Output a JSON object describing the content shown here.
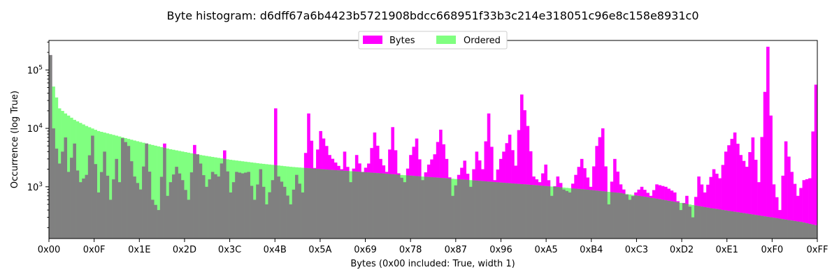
{
  "chart_data": {
    "type": "bar",
    "title": "Byte histogram: d6dff67a6b4423b5721908bdcc668951f33b3c214e318051c96e8c158e8931c0",
    "xlabel": "Bytes (0x00 included: True, width 1)",
    "ylabel": "Occurrence (log True)",
    "yscale": "log",
    "ylim": [
      130,
      320000
    ],
    "xlim": [
      0,
      255
    ],
    "x_ticks": [
      "0x00",
      "0x0F",
      "0x1E",
      "0x2D",
      "0x3C",
      "0x4B",
      "0x5A",
      "0x69",
      "0x78",
      "0x87",
      "0x96",
      "0xA5",
      "0xB4",
      "0xC3",
      "0xD2",
      "0xE1",
      "0xF0",
      "0xFF"
    ],
    "y_ticks": [
      {
        "value": 1000,
        "base": "10",
        "exp": "3"
      },
      {
        "value": 10000,
        "base": "10",
        "exp": "4"
      },
      {
        "value": 100000,
        "base": "10",
        "exp": "5"
      }
    ],
    "legend": {
      "placement": "top-center",
      "entries": [
        "Bytes",
        "Ordered"
      ]
    },
    "colors": {
      "bytes": "#ff00ff",
      "ordered": "#80ff80",
      "overlap": "#808080"
    },
    "series": [
      {
        "name": "Bytes",
        "anchors": [
          [
            0,
            180000
          ],
          [
            1,
            10000
          ],
          [
            2,
            4500
          ],
          [
            3,
            2500
          ],
          [
            4,
            4000
          ],
          [
            5,
            7000
          ],
          [
            6,
            1800
          ],
          [
            8,
            5500
          ],
          [
            9,
            1900
          ],
          [
            10,
            1200
          ],
          [
            12,
            1600
          ],
          [
            14,
            7500
          ],
          [
            16,
            800
          ],
          [
            18,
            4000
          ],
          [
            20,
            600
          ],
          [
            22,
            3000
          ],
          [
            23,
            1200
          ],
          [
            24,
            6800
          ],
          [
            26,
            5000
          ],
          [
            28,
            1500
          ],
          [
            30,
            900
          ],
          [
            32,
            5500
          ],
          [
            34,
            600
          ],
          [
            36,
            400
          ],
          [
            38,
            5500
          ],
          [
            39,
            700
          ],
          [
            40,
            1200
          ],
          [
            42,
            2200
          ],
          [
            44,
            1300
          ],
          [
            46,
            600
          ],
          [
            48,
            5200
          ],
          [
            50,
            2500
          ],
          [
            52,
            1000
          ],
          [
            54,
            1800
          ],
          [
            56,
            1500
          ],
          [
            58,
            4200
          ],
          [
            60,
            800
          ],
          [
            62,
            1800
          ],
          [
            64,
            1700
          ],
          [
            66,
            1800
          ],
          [
            68,
            600
          ],
          [
            70,
            2000
          ],
          [
            72,
            500
          ],
          [
            74,
            1300
          ],
          [
            75,
            22000
          ],
          [
            76,
            1500
          ],
          [
            78,
            1000
          ],
          [
            80,
            500
          ],
          [
            82,
            1600
          ],
          [
            84,
            800
          ],
          [
            86,
            18000
          ],
          [
            88,
            2100
          ],
          [
            90,
            9000
          ],
          [
            92,
            5000
          ],
          [
            93,
            3500
          ],
          [
            95,
            2600
          ],
          [
            97,
            2000
          ],
          [
            98,
            4000
          ],
          [
            100,
            1200
          ],
          [
            102,
            3500
          ],
          [
            104,
            1800
          ],
          [
            106,
            2500
          ],
          [
            108,
            8500
          ],
          [
            110,
            3000
          ],
          [
            112,
            1800
          ],
          [
            114,
            10500
          ],
          [
            116,
            1700
          ],
          [
            118,
            1200
          ],
          [
            120,
            3500
          ],
          [
            122,
            6700
          ],
          [
            124,
            1300
          ],
          [
            126,
            2400
          ],
          [
            128,
            3600
          ],
          [
            130,
            9500
          ],
          [
            132,
            3000
          ],
          [
            134,
            700
          ],
          [
            136,
            1600
          ],
          [
            138,
            2800
          ],
          [
            140,
            1000
          ],
          [
            142,
            4000
          ],
          [
            144,
            2000
          ],
          [
            146,
            18000
          ],
          [
            148,
            1300
          ],
          [
            150,
            3000
          ],
          [
            151,
            4000
          ],
          [
            153,
            7800
          ],
          [
            155,
            2300
          ],
          [
            157,
            38000
          ],
          [
            159,
            11000
          ],
          [
            161,
            1500
          ],
          [
            163,
            1200
          ],
          [
            165,
            2400
          ],
          [
            167,
            700
          ],
          [
            169,
            1500
          ],
          [
            171,
            900
          ],
          [
            173,
            800
          ],
          [
            175,
            1600
          ],
          [
            177,
            3000
          ],
          [
            180,
            1000
          ],
          [
            182,
            5000
          ],
          [
            184,
            10000
          ],
          [
            186,
            500
          ],
          [
            188,
            3000
          ],
          [
            190,
            1100
          ],
          [
            193,
            600
          ],
          [
            195,
            800
          ],
          [
            197,
            1000
          ],
          [
            200,
            700
          ],
          [
            202,
            1100
          ],
          [
            205,
            1000
          ],
          [
            208,
            800
          ],
          [
            210,
            400
          ],
          [
            212,
            700
          ],
          [
            214,
            300
          ],
          [
            216,
            1500
          ],
          [
            218,
            800
          ],
          [
            221,
            2000
          ],
          [
            223,
            1400
          ],
          [
            225,
            4000
          ],
          [
            228,
            8500
          ],
          [
            230,
            3500
          ],
          [
            232,
            2200
          ],
          [
            234,
            7000
          ],
          [
            236,
            1200
          ],
          [
            239,
            250000
          ],
          [
            241,
            1100
          ],
          [
            243,
            400
          ],
          [
            245,
            6000
          ],
          [
            247,
            1800
          ],
          [
            249,
            700
          ],
          [
            251,
            1300
          ],
          [
            253,
            1400
          ],
          [
            255,
            56000
          ]
        ]
      },
      {
        "name": "Ordered",
        "anchors": [
          [
            0,
            180000
          ],
          [
            1,
            52000
          ],
          [
            3,
            22000
          ],
          [
            5,
            18000
          ],
          [
            8,
            14000
          ],
          [
            12,
            11000
          ],
          [
            16,
            9000
          ],
          [
            22,
            7500
          ],
          [
            28,
            6200
          ],
          [
            34,
            5200
          ],
          [
            40,
            4400
          ],
          [
            50,
            3500
          ],
          [
            60,
            2900
          ],
          [
            70,
            2500
          ],
          [
            80,
            2200
          ],
          [
            90,
            2000
          ],
          [
            100,
            1850
          ],
          [
            110,
            1700
          ],
          [
            120,
            1550
          ],
          [
            130,
            1420
          ],
          [
            140,
            1300
          ],
          [
            150,
            1180
          ],
          [
            160,
            1080
          ],
          [
            170,
            980
          ],
          [
            180,
            880
          ],
          [
            190,
            780
          ],
          [
            200,
            650
          ],
          [
            210,
            530
          ],
          [
            220,
            430
          ],
          [
            230,
            360
          ],
          [
            240,
            300
          ],
          [
            250,
            250
          ],
          [
            255,
            220
          ]
        ]
      }
    ]
  }
}
